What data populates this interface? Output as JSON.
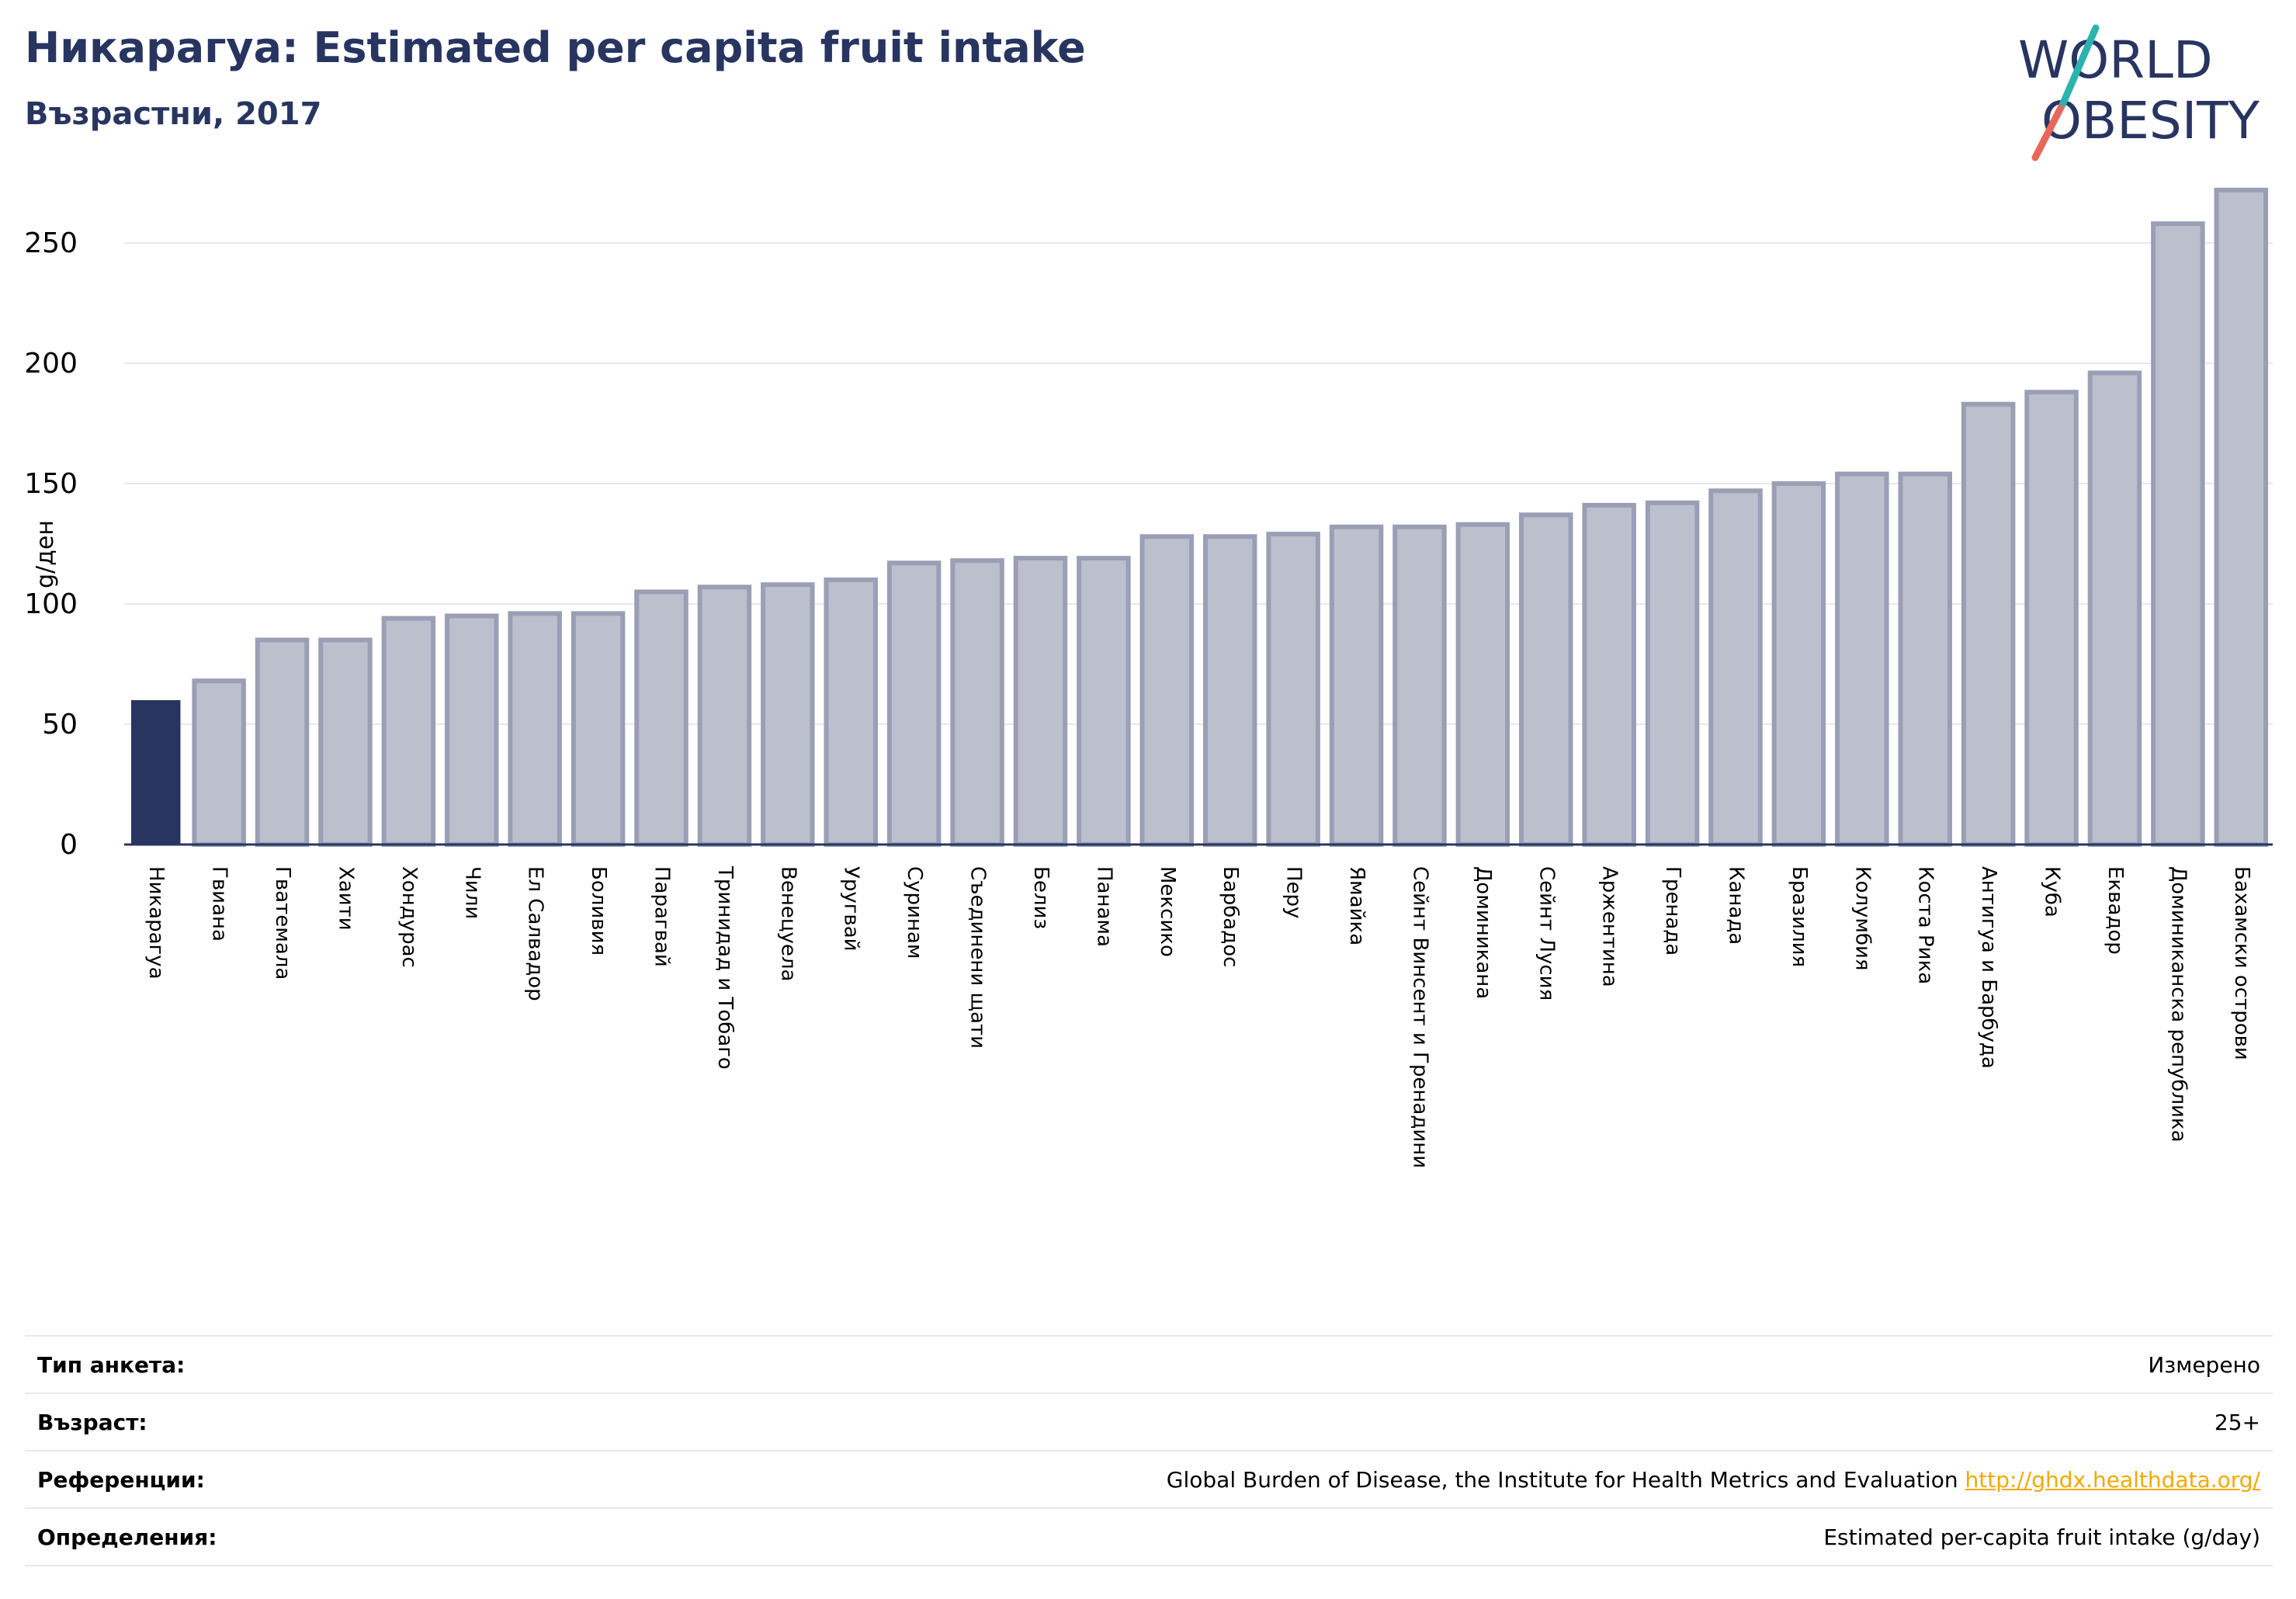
{
  "header": {
    "title": "Никарагуа: Estimated per capita fruit intake",
    "subtitle": "Възрастни, 2017"
  },
  "logo": {
    "line1": "WORLD",
    "line2": "OBESITY",
    "colors": {
      "text": "#283561",
      "teal": "#2cb3ad",
      "coral": "#e8675a"
    }
  },
  "colors": {
    "highlight": "#283561",
    "bar": "#bcbfcc",
    "bar_edge": "#9a9fb6",
    "grid": "#e6e8ee",
    "axis": "#283561",
    "link": "#f2a900"
  },
  "chart_data": {
    "type": "bar",
    "title": "Никарагуа: Estimated per capita fruit intake",
    "subtitle": "Възрастни, 2017",
    "ylabel": "g/ден",
    "xlabel": "",
    "ylim": [
      0,
      280
    ],
    "yticks": [
      0,
      50,
      100,
      150,
      200,
      250
    ],
    "grid": true,
    "highlight": "Никарагуа",
    "categories": [
      "Никарагуа",
      "Гвиана",
      "Гватемала",
      "Хаити",
      "Хондурас",
      "Чили",
      "Ел Салвадор",
      "Боливия",
      "Парагвай",
      "Тринидад и Тобаго",
      "Венецуела",
      "Уругвай",
      "Суринам",
      "Съединени щати",
      "Белиз",
      "Панама",
      "Мексико",
      "Барбадос",
      "Перу",
      "Ямайка",
      "Сейнт Винсент и Гренадини",
      "Доминикана",
      "Сейнт Лусия",
      "Аржентина",
      "Гренада",
      "Канада",
      "Бразилия",
      "Колумбия",
      "Коста Рика",
      "Антигуа и Барбуда",
      "Куба",
      "Еквадор",
      "Доминиканска република",
      "Бахамски острови"
    ],
    "values": [
      60,
      68,
      85,
      85,
      94,
      95,
      96,
      96,
      105,
      107,
      108,
      110,
      117,
      118,
      119,
      119,
      128,
      128,
      129,
      132,
      132,
      133,
      137,
      141,
      142,
      147,
      150,
      154,
      154,
      183,
      188,
      196,
      258,
      272
    ]
  },
  "info": [
    {
      "label": "Тип анкета:",
      "value": "Измерено"
    },
    {
      "label": "Възраст:",
      "value": "25+"
    },
    {
      "label": "Референции:",
      "value": "Global Burden of Disease, the Institute for Health Metrics and Evaluation",
      "link": "http://ghdx.healthdata.org/"
    },
    {
      "label": "Определения:",
      "value": "Estimated per-capita fruit intake (g/day)"
    }
  ]
}
